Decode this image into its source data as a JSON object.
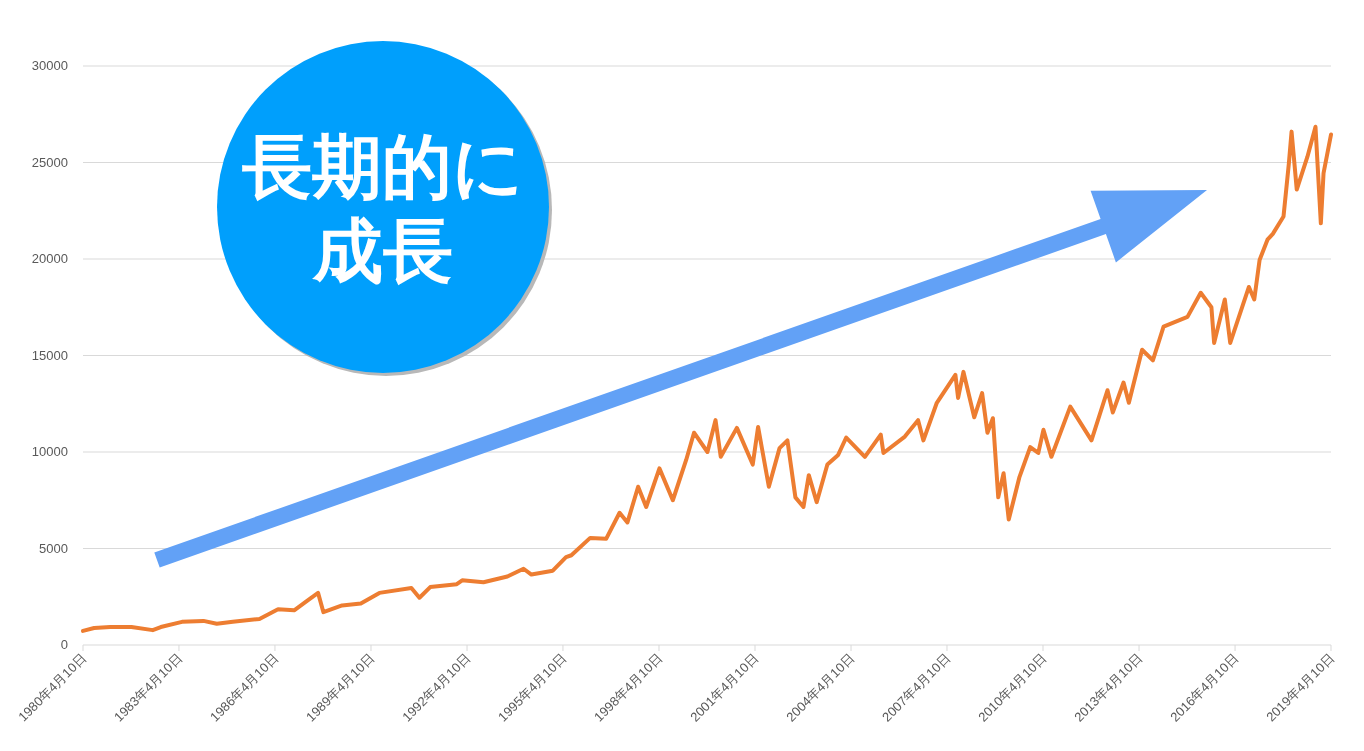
{
  "chart_data": {
    "type": "line",
    "color": "#ed7d31",
    "grid": "y",
    "xlim": [
      "1980-04-10",
      "2019-04-10"
    ],
    "ylim": [
      0,
      30000
    ],
    "yticks": [
      0,
      5000,
      10000,
      15000,
      20000,
      25000,
      30000
    ],
    "xticks": [
      {
        "value": "1980-04-10",
        "label": "1980年4月10日"
      },
      {
        "value": "1983-04-10",
        "label": "1983年4月10日"
      },
      {
        "value": "1986-04-10",
        "label": "1986年4月10日"
      },
      {
        "value": "1989-04-10",
        "label": "1989年4月10日"
      },
      {
        "value": "1992-04-10",
        "label": "1992年4月10日"
      },
      {
        "value": "1995-04-10",
        "label": "1995年4月10日"
      },
      {
        "value": "1998-04-10",
        "label": "1998年4月10日"
      },
      {
        "value": "2001-04-10",
        "label": "2001年4月10日"
      },
      {
        "value": "2004-04-10",
        "label": "2004年4月10日"
      },
      {
        "value": "2007-04-10",
        "label": "2007年4月10日"
      },
      {
        "value": "2010-04-10",
        "label": "2010年4月10日"
      },
      {
        "value": "2013-04-10",
        "label": "2013年4月10日"
      },
      {
        "value": "2016-04-10",
        "label": "2016年4月10日"
      },
      {
        "value": "2019-04-10",
        "label": "2019年4月10日"
      }
    ],
    "annotations": [
      "長期的に",
      "成長"
    ],
    "x": [
      "1980-04-10",
      "1980-08",
      "1981-02",
      "1981-10",
      "1982-06",
      "1982-09",
      "1983-05",
      "1984-01",
      "1984-06",
      "1984-12",
      "1985-10",
      "1986-05",
      "1986-11",
      "1987-04",
      "1987-08",
      "1987-10",
      "1988-05",
      "1988-12",
      "1989-07",
      "1990-07",
      "1990-10",
      "1991-02",
      "1991-12",
      "1992-02",
      "1992-10",
      "1993-07",
      "1994-01",
      "1994-04",
      "1994-12",
      "1995-05",
      "1995-07",
      "1996-02",
      "1996-08",
      "1997-01",
      "1997-04",
      "1997-08",
      "1997-11",
      "1998-04",
      "1998-09",
      "1999-02",
      "1999-05",
      "1999-10",
      "2000-01",
      "2000-03",
      "2000-09",
      "2001-03",
      "2001-05",
      "2001-09",
      "2002-01",
      "2002-04",
      "2002-07",
      "2002-10",
      "2002-12",
      "2003-03",
      "2003-07",
      "2003-11",
      "2004-02",
      "2004-09",
      "2005-03",
      "2005-04",
      "2005-12",
      "2006-05",
      "2006-07",
      "2006-12",
      "2007-07",
      "2007-08",
      "2007-10",
      "2008-02",
      "2008-05",
      "2008-07",
      "2008-09",
      "2008-11",
      "2009-01",
      "2009-03",
      "2009-07",
      "2009-11",
      "2010-02",
      "2010-04",
      "2010-07",
      "2011-02",
      "2011-10",
      "2012-04",
      "2012-06",
      "2012-10",
      "2012-12",
      "2013-05",
      "2013-09",
      "2014-01",
      "2014-10",
      "2015-03",
      "2015-07",
      "2015-08",
      "2015-12",
      "2016-02",
      "2016-09",
      "2016-11",
      "2017-01",
      "2017-04",
      "2017-06",
      "2017-10",
      "2017-12",
      "2018-01",
      "2018-03",
      "2018-07",
      "2018-10",
      "2018-12",
      "2019-01",
      "2019-04-10"
    ],
    "values": [
      730,
      880,
      930,
      930,
      770,
      930,
      1200,
      1250,
      1100,
      1200,
      1350,
      1850,
      1800,
      2300,
      2700,
      1700,
      2050,
      2150,
      2700,
      2950,
      2450,
      3000,
      3150,
      3350,
      3250,
      3550,
      3950,
      3650,
      3850,
      4550,
      4650,
      5550,
      5500,
      6850,
      6350,
      8200,
      7150,
      9150,
      7500,
      9600,
      11000,
      10000,
      11650,
      9750,
      11250,
      9350,
      11300,
      8200,
      10200,
      10600,
      7650,
      7150,
      8800,
      7400,
      9350,
      9850,
      10750,
      9750,
      10900,
      9950,
      10800,
      11650,
      10600,
      12550,
      14000,
      12800,
      14150,
      11800,
      13050,
      11000,
      11750,
      7650,
      8900,
      6500,
      8700,
      10250,
      9950,
      11150,
      9750,
      12350,
      10600,
      13200,
      12050,
      13600,
      12550,
      15300,
      14750,
      16500,
      17000,
      18250,
      17500,
      15650,
      17900,
      15650,
      18550,
      17900,
      19950,
      21000,
      21300,
      22200,
      24950,
      26600,
      23600,
      25300,
      26850,
      21850,
      24450,
      26450
    ]
  }
}
